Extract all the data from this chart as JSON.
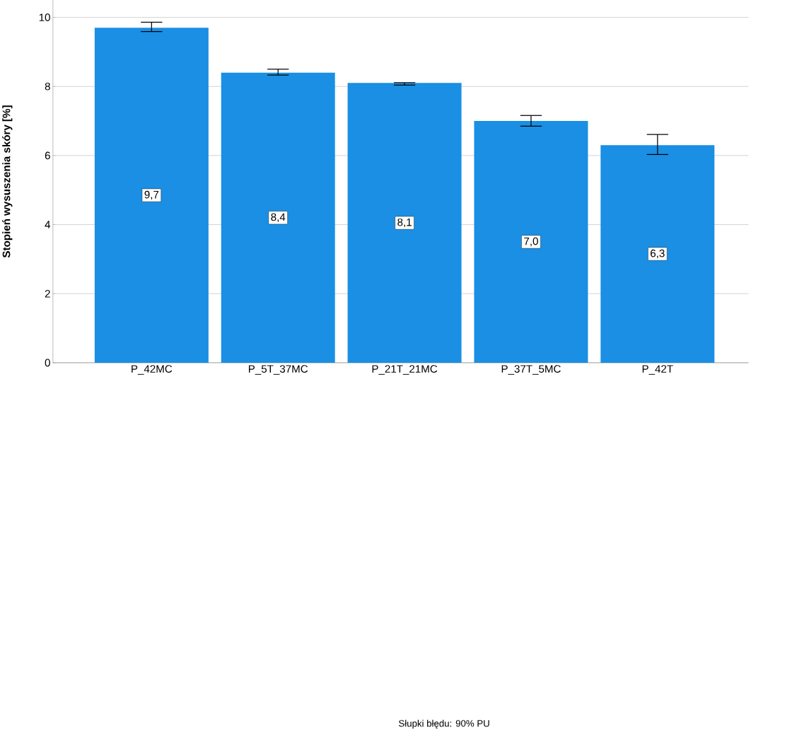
{
  "chart_data": {
    "type": "bar",
    "ylabel": "Stopień wysuszenia skóry [%]",
    "categories": [
      "P_42MC",
      "P_5T_37MC",
      "P_21T_21MC",
      "P_37T_5MC",
      "P_42T"
    ],
    "values": [
      9.7,
      8.4,
      8.1,
      7.0,
      6.3
    ],
    "errors": [
      [
        9.59,
        9.86
      ],
      [
        8.33,
        8.5
      ],
      [
        8.04,
        8.11
      ],
      [
        6.85,
        7.16
      ],
      [
        6.03,
        6.61
      ]
    ],
    "value_labels": [
      "9,7",
      "8,4",
      "8,1",
      "7,0",
      "6,3"
    ],
    "color": "#1a8fe3",
    "ylim": [
      0,
      10.5
    ],
    "yticks": [
      0,
      2,
      4,
      6,
      8,
      10
    ],
    "grid": "y",
    "annotations": [
      "Słupki błędu: 90% PU"
    ]
  }
}
